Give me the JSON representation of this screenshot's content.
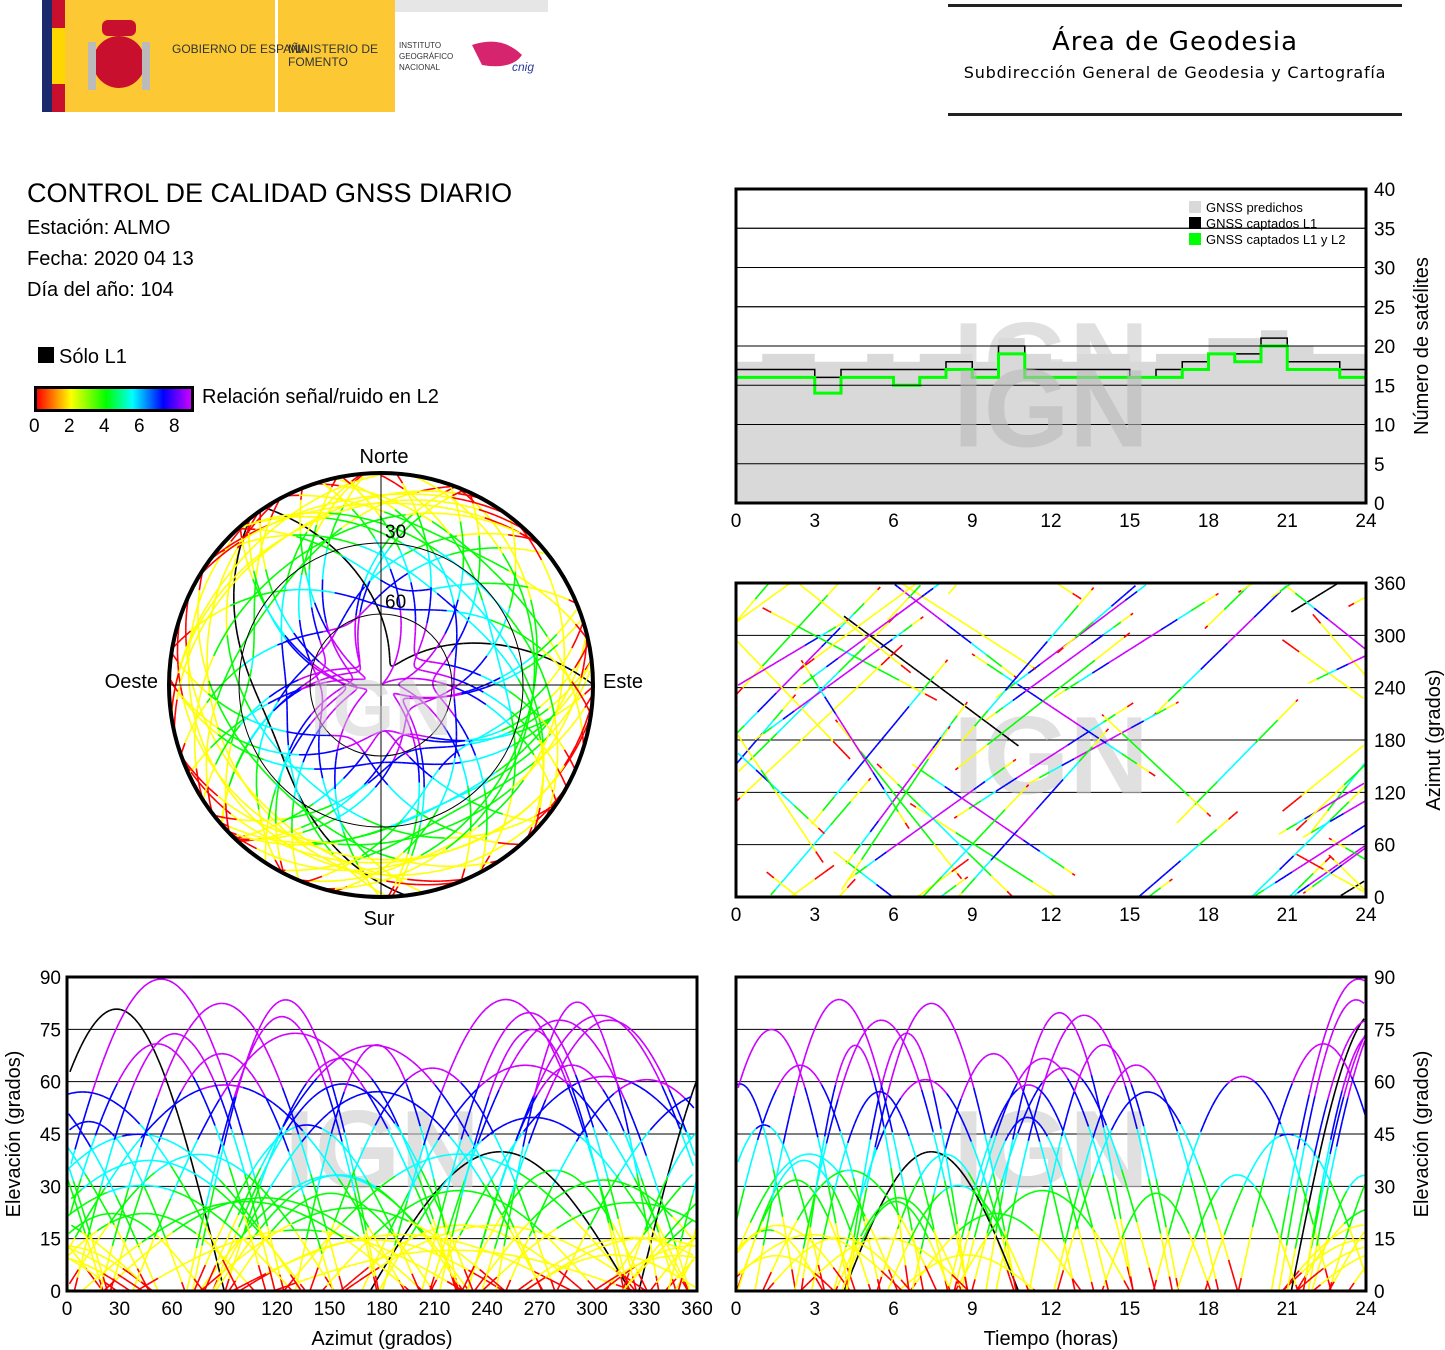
{
  "header": {
    "logo_text": [
      "GOBIERNO DE ESPAÑA",
      "MINISTERIO DE FOMENTO",
      "INSTITUTO GEOGRÁFICO NACIONAL",
      "cnig"
    ],
    "title": "Área de Geodesia",
    "subtitle": "Subdirección General de Geodesia y Cartografía"
  },
  "info": {
    "title": "CONTROL DE CALIDAD GNSS DIARIO",
    "station": "Estación: ALMO",
    "date": "Fecha: 2020 04 13",
    "doy": "Día del año: 104"
  },
  "legend": {
    "l1_only": "Sólo L1",
    "l1_only_color": "#000000",
    "snr_label": "Relación señal/ruido en L2",
    "snr_ticks": [
      "0",
      "2",
      "4",
      "6",
      "8"
    ],
    "snr_colormap": [
      "#ff0000",
      "#ffff00",
      "#00ff00",
      "#00ffff",
      "#0000ff",
      "#cc00ff"
    ]
  },
  "watermark": "IGN",
  "chart_data": [
    {
      "id": "skyplot",
      "type": "scatter",
      "projection": "polar",
      "direction_labels": {
        "north": "Norte",
        "south": "Sur",
        "west": "Oeste",
        "east": "Este"
      },
      "ring_labels": [
        "30",
        "60"
      ]
    },
    {
      "id": "nsat",
      "type": "line",
      "ylabel": "Número de satélites",
      "xlim": [
        0,
        24
      ],
      "ylim": [
        0,
        40
      ],
      "xticks": [
        "0",
        "3",
        "6",
        "9",
        "12",
        "15",
        "18",
        "21",
        "24"
      ],
      "yticks": [
        "0",
        "5",
        "10",
        "15",
        "20",
        "25",
        "30",
        "35",
        "40"
      ],
      "grid": "horizontal",
      "legend_position": "top-right",
      "x": [
        0,
        1,
        2,
        3,
        4,
        5,
        6,
        7,
        8,
        9,
        10,
        11,
        12,
        13,
        14,
        15,
        16,
        17,
        18,
        19,
        20,
        21,
        22,
        23,
        24
      ],
      "series": [
        {
          "name": "GNSS predichos",
          "color": "#d9d9d9",
          "values": [
            18,
            19,
            19,
            18,
            18,
            19,
            18,
            19,
            19,
            18,
            21,
            19,
            18,
            19,
            19,
            18,
            19,
            19,
            21,
            21,
            22,
            20,
            19,
            19,
            18
          ]
        },
        {
          "name": "GNSS captados L1",
          "color": "#000000",
          "values": [
            17,
            17,
            17,
            16,
            17,
            17,
            17,
            17,
            18,
            17,
            20,
            17,
            17,
            17,
            17,
            16,
            17,
            18,
            19,
            19,
            21,
            18,
            18,
            17,
            16
          ]
        },
        {
          "name": "GNSS captados L1 y L2",
          "color": "#00ff00",
          "values": [
            16,
            16,
            16,
            14,
            16,
            16,
            15,
            16,
            17,
            16,
            19,
            16,
            16,
            16,
            16,
            16,
            16,
            17,
            19,
            18,
            20,
            17,
            17,
            16,
            15
          ]
        }
      ]
    },
    {
      "id": "azimuth-time",
      "type": "scatter",
      "ylabel": "Azimut (grados)",
      "xlim": [
        0,
        24
      ],
      "ylim": [
        0,
        360
      ],
      "xticks": [
        "0",
        "3",
        "6",
        "9",
        "12",
        "15",
        "18",
        "21",
        "24"
      ],
      "yticks": [
        "0",
        "60",
        "120",
        "180",
        "240",
        "300",
        "360"
      ],
      "grid": "horizontal"
    },
    {
      "id": "elevation-azimuth",
      "type": "scatter",
      "xlabel": "Azimut (grados)",
      "ylabel": "Elevación (grados)",
      "xlim": [
        0,
        360
      ],
      "ylim": [
        0,
        90
      ],
      "xticks": [
        "0",
        "30",
        "60",
        "90",
        "120",
        "150",
        "180",
        "210",
        "240",
        "270",
        "300",
        "330",
        "360"
      ],
      "yticks": [
        "0",
        "15",
        "30",
        "45",
        "60",
        "75",
        "90"
      ],
      "grid": "horizontal"
    },
    {
      "id": "elevation-time",
      "type": "scatter",
      "xlabel": "Tiempo (horas)",
      "ylabel": "Elevación (grados)",
      "xlim": [
        0,
        24
      ],
      "ylim": [
        0,
        90
      ],
      "xticks": [
        "0",
        "3",
        "6",
        "9",
        "12",
        "15",
        "18",
        "21",
        "24"
      ],
      "yticks": [
        "0",
        "15",
        "30",
        "45",
        "60",
        "75",
        "90"
      ],
      "grid": "horizontal"
    }
  ]
}
